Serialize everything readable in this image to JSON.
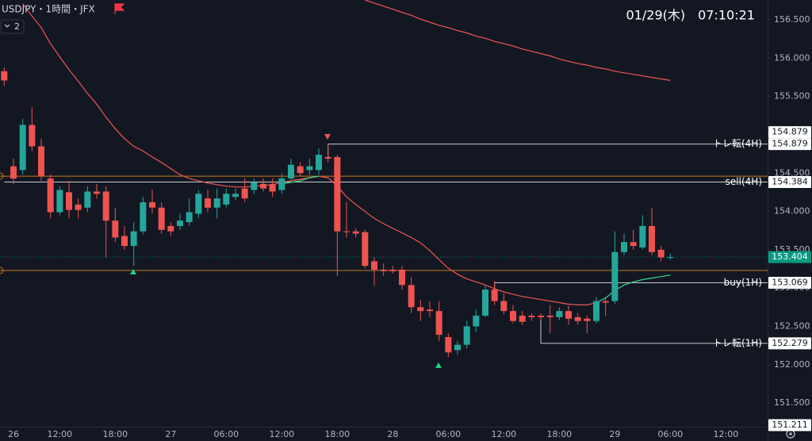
{
  "chart_data": {
    "type": "candlestick",
    "title": "USDJPY・1時間・JFX",
    "indicator_badge": "2",
    "clock": "01/29(木)　07:10:21",
    "categories": [
      null,
      "26",
      null,
      null,
      null,
      null,
      "12:00",
      null,
      null,
      null,
      null,
      null,
      "18:00",
      null,
      null,
      null,
      null,
      null,
      "27",
      null,
      null,
      null,
      null,
      null,
      "06:00",
      null,
      null,
      null,
      null,
      null,
      "12:00",
      null,
      null,
      null,
      null,
      null,
      "18:00",
      null,
      null,
      null,
      null,
      null,
      "28",
      null,
      null,
      null,
      null,
      null,
      "06:00",
      null,
      null,
      null,
      null,
      null,
      "12:00",
      null,
      null,
      null,
      null,
      null,
      "18:00",
      null,
      null,
      null,
      null,
      null,
      "29",
      null,
      null,
      null,
      null,
      null,
      "06:00",
      null,
      null,
      null,
      null,
      null,
      "12:00"
    ],
    "open": [
      155.83,
      154.59,
      154.54,
      155.13,
      154.85,
      154.43,
      153.99,
      154.25,
      154.09,
      154.05,
      154.26,
      154.26,
      153.88,
      153.68,
      153.55,
      153.74,
      154.12,
      154.05,
      153.81,
      153.81,
      153.86,
      153.97,
      154.17,
      154.05,
      154.09,
      154.19,
      154.3,
      154.28,
      154.36,
      154.36,
      154.28,
      154.43,
      154.59,
      154.54,
      154.54,
      154.71,
      154.71,
      153.74,
      153.74,
      153.73,
      153.35,
      153.24,
      153.24,
      153.24,
      153.04,
      152.75,
      152.72,
      152.7,
      152.36,
      152.19,
      152.26,
      152.5,
      152.64,
      152.98,
      152.83,
      152.7,
      152.64,
      152.64,
      152.64,
      152.64,
      152.62,
      152.7,
      152.62,
      152.6,
      152.57,
      152.83,
      152.83,
      153.47,
      153.6,
      153.53,
      153.81,
      153.5,
      153.4,
      null,
      null,
      null,
      null,
      null,
      null
    ],
    "high": [
      155.88,
      154.69,
      155.21,
      155.36,
      154.95,
      154.48,
      154.33,
      154.4,
      154.17,
      154.33,
      154.36,
      154.33,
      154.05,
      153.81,
      153.86,
      154.19,
      154.28,
      154.12,
      153.86,
      153.97,
      154.17,
      154.28,
      154.28,
      154.3,
      154.3,
      154.3,
      154.43,
      154.43,
      154.43,
      154.43,
      154.5,
      154.69,
      154.64,
      154.69,
      154.82,
      154.879,
      154.74,
      154.12,
      153.78,
      153.76,
      153.4,
      153.32,
      153.29,
      153.29,
      153.14,
      152.85,
      152.83,
      152.83,
      152.41,
      152.31,
      152.57,
      152.72,
      153.04,
      153.09,
      152.93,
      152.78,
      152.7,
      152.67,
      152.67,
      152.78,
      152.75,
      152.77,
      152.67,
      152.64,
      152.88,
      152.88,
      153.74,
      153.71,
      153.76,
      153.95,
      154.05,
      153.55,
      153.45,
      null,
      null,
      null,
      null,
      null,
      null
    ],
    "low": [
      155.64,
      154.36,
      154.48,
      154.79,
      154.4,
      153.91,
      153.95,
      153.91,
      153.91,
      153.99,
      154.17,
      153.4,
      153.6,
      153.5,
      153.29,
      153.7,
      153.97,
      153.71,
      153.68,
      153.76,
      153.81,
      153.91,
      153.99,
      153.91,
      154.05,
      154.15,
      154.12,
      154.23,
      154.26,
      154.19,
      154.23,
      154.4,
      154.46,
      154.48,
      154.48,
      154.64,
      153.16,
      153.66,
      153.66,
      153.26,
      153.03,
      153.16,
      153.19,
      152.98,
      152.67,
      152.57,
      152.62,
      152.31,
      152.1,
      152.13,
      152.21,
      152.43,
      152.62,
      152.78,
      152.66,
      152.54,
      152.52,
      152.57,
      152.58,
      152.41,
      152.58,
      152.52,
      152.52,
      152.41,
      152.54,
      152.64,
      152.79,
      153.43,
      153.5,
      153.5,
      153.43,
      153.35,
      153.37,
      null,
      null,
      null,
      null,
      null,
      null
    ],
    "close": [
      155.71,
      154.43,
      155.13,
      154.85,
      154.46,
      153.99,
      154.28,
      154.02,
      154.02,
      154.26,
      154.23,
      153.88,
      153.66,
      153.55,
      153.74,
      154.12,
      154.05,
      153.76,
      153.74,
      153.88,
      153.99,
      154.23,
      154.05,
      154.17,
      154.23,
      154.23,
      154.17,
      154.38,
      154.3,
      154.26,
      154.43,
      154.61,
      154.5,
      154.59,
      154.74,
      154.69,
      153.74,
      153.73,
      153.71,
      153.29,
      153.24,
      153.22,
      153.22,
      153.04,
      152.75,
      152.7,
      152.7,
      152.39,
      152.16,
      152.26,
      152.5,
      152.64,
      152.98,
      152.83,
      152.7,
      152.57,
      152.56,
      152.62,
      152.62,
      152.62,
      152.7,
      152.6,
      152.57,
      152.57,
      152.83,
      152.81,
      153.47,
      153.6,
      153.55,
      153.81,
      153.47,
      153.4,
      153.404,
      null,
      null,
      null,
      null,
      null,
      null
    ],
    "up_color": "#26a69a",
    "down_color": "#ef5350",
    "lines": [
      {
        "color": "#f05454",
        "values": [
          null,
          null,
          156.71,
          156.55,
          156.4,
          156.19,
          156.02,
          155.85,
          155.7,
          155.54,
          155.4,
          155.23,
          155.08,
          154.95,
          154.85,
          154.79,
          154.71,
          154.64,
          154.56,
          154.48,
          154.43,
          154.4,
          154.37,
          154.35,
          154.33,
          154.32,
          154.32,
          154.33,
          154.34,
          154.35,
          154.38,
          154.4,
          154.42,
          154.44,
          154.46,
          154.44,
          154.33,
          154.19,
          154.09,
          154.0,
          153.91,
          153.84,
          153.78,
          153.72,
          153.66,
          153.59,
          153.49,
          153.37,
          153.26,
          153.18,
          153.12,
          153.08,
          153.04,
          152.99,
          152.95,
          152.92,
          152.89,
          152.87,
          152.85,
          152.83,
          152.81,
          152.79,
          152.78,
          152.78,
          152.81,
          null,
          null,
          null,
          null,
          null,
          null,
          null,
          null,
          null,
          null,
          null,
          null,
          null,
          null
        ]
      },
      {
        "color": "#3dd68c",
        "values": [
          null,
          null,
          null,
          null,
          null,
          null,
          null,
          null,
          null,
          null,
          null,
          null,
          null,
          null,
          null,
          null,
          null,
          null,
          null,
          null,
          null,
          null,
          null,
          null,
          null,
          null,
          null,
          null,
          null,
          null,
          154.36,
          154.38,
          154.4,
          154.44,
          154.46,
          null,
          null,
          null,
          null,
          null,
          null,
          null,
          null,
          null,
          null,
          null,
          null,
          null,
          null,
          null,
          null,
          null,
          null,
          null,
          null,
          null,
          null,
          null,
          null,
          null,
          null,
          null,
          null,
          null,
          152.81,
          152.87,
          152.97,
          153.04,
          153.08,
          153.11,
          153.13,
          153.15,
          153.17,
          null,
          null,
          null,
          null,
          null,
          null
        ]
      },
      {
        "color": "#f05454",
        "values": [
          null,
          null,
          null,
          null,
          null,
          null,
          null,
          null,
          null,
          null,
          null,
          null,
          null,
          null,
          null,
          null,
          null,
          null,
          null,
          null,
          null,
          null,
          null,
          null,
          null,
          null,
          null,
          null,
          null,
          null,
          null,
          null,
          null,
          null,
          null,
          null,
          null,
          null,
          null,
          156.76,
          156.72,
          156.68,
          156.64,
          156.6,
          156.56,
          156.51,
          156.47,
          156.43,
          156.4,
          156.36,
          156.33,
          156.29,
          156.26,
          156.22,
          156.19,
          156.16,
          156.12,
          156.09,
          156.06,
          156.03,
          155.99,
          155.96,
          155.93,
          155.91,
          155.88,
          155.86,
          155.83,
          155.81,
          155.79,
          155.77,
          155.75,
          155.73,
          155.71,
          null,
          null,
          null,
          null,
          null,
          null
        ]
      }
    ],
    "guides": [
      {
        "value": 154.46,
        "color": "#c27c1e"
      },
      {
        "value": 153.23,
        "color": "#c27c1e"
      }
    ],
    "levels": [
      {
        "name": "トレ転(4H)",
        "value": 154.879,
        "color": "#c8ccd4",
        "from": 35
      },
      {
        "value": 154.879
      },
      {
        "name": "sell(4H)",
        "value": 154.384,
        "color": "#c8ccd4",
        "from": 0
      },
      {
        "name": "buy(1H)",
        "value": 153.069,
        "color": "#c8ccd4",
        "from": 53
      },
      {
        "name": "トレ転(1H)",
        "value": 152.279,
        "color": "#c8ccd4",
        "from": 58
      },
      {
        "value": 151.211
      }
    ],
    "current_price": {
      "value": 153.404,
      "color": "#089981"
    },
    "ylim": [
      151.19,
      156.76
    ],
    "yticks": [
      {
        "value": 151.5,
        "label": "151.500"
      },
      {
        "value": 152,
        "label": "152.000"
      },
      {
        "value": 152.5,
        "label": "152.500"
      },
      {
        "value": 153,
        "label": "153.000"
      },
      {
        "value": 153.5,
        "label": "153.500"
      },
      {
        "value": 154,
        "label": "154.000"
      },
      {
        "value": 154.5,
        "label": "154.500"
      },
      {
        "value": 155,
        "label": "155.000"
      },
      {
        "value": 155.5,
        "label": "155.500"
      },
      {
        "value": 156,
        "label": "156.000"
      },
      {
        "value": 156.5,
        "label": "156.500"
      }
    ]
  }
}
